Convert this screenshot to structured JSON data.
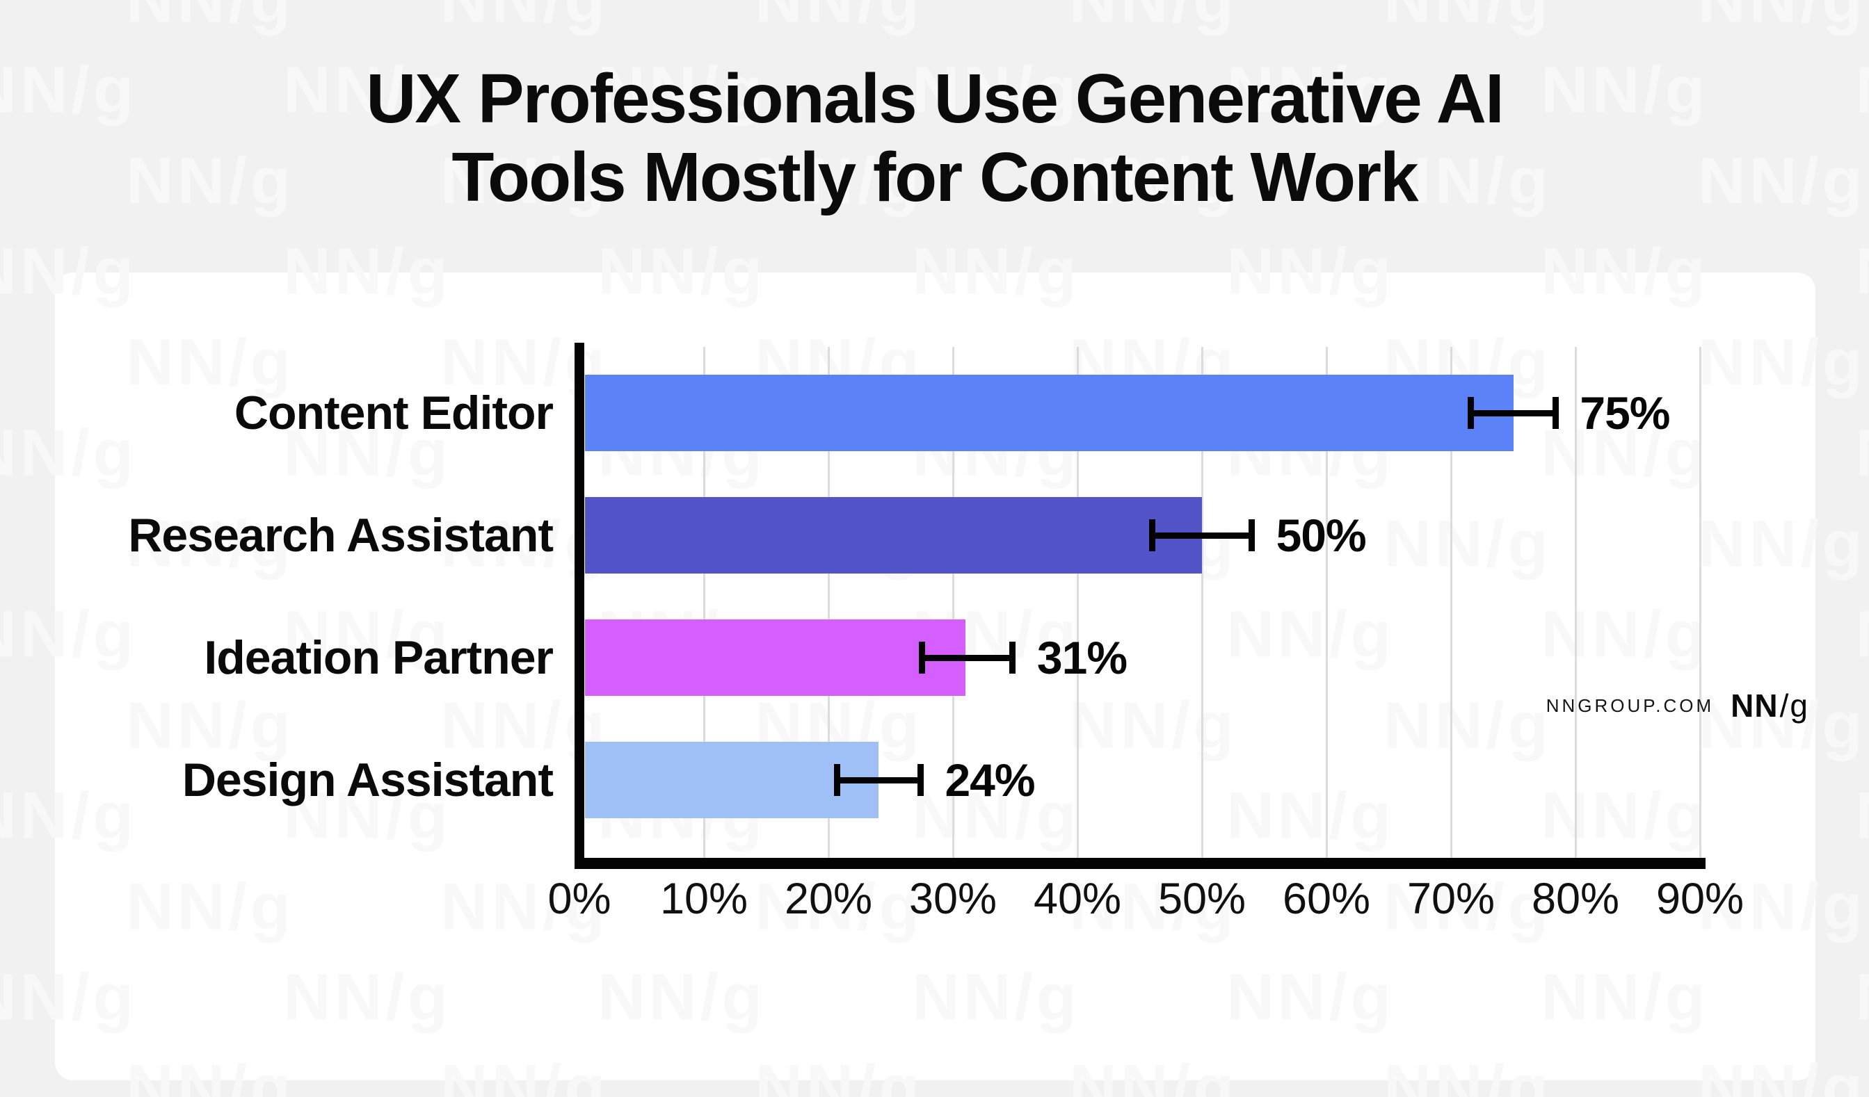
{
  "title": {
    "line1": "UX Professionals Use Generative AI",
    "line2": "Tools Mostly for Content Work"
  },
  "watermark_text": "NN/g",
  "footer": {
    "site": "NNGROUP.COM",
    "logo_nn": "NN",
    "logo_slash": "/",
    "logo_g": "g"
  },
  "chart_data": {
    "type": "bar",
    "orientation": "horizontal",
    "title": "UX Professionals Use Generative AI Tools Mostly for Content Work",
    "categories": [
      "Content Editor",
      "Research Assistant",
      "Ideation Partner",
      "Design Assistant"
    ],
    "values": [
      75,
      50,
      31,
      24
    ],
    "value_labels": [
      "75%",
      "50%",
      "31%",
      "24%"
    ],
    "error_low": [
      71.6,
      46,
      27.5,
      20.7
    ],
    "error_high": [
      78.4,
      54,
      34.8,
      27.4
    ],
    "bar_colors": [
      "#5c82f8",
      "#5254c8",
      "#d45ffe",
      "#9ec0f6"
    ],
    "x_ticks": [
      "0%",
      "10%",
      "20%",
      "30%",
      "40%",
      "50%",
      "60%",
      "70%",
      "80%",
      "90%"
    ],
    "xlim": [
      0,
      90
    ],
    "grid": true,
    "gridline_color": "#dcdcdc",
    "axis_color": "#030303",
    "background_color": "#f1f1f2",
    "card_color": "#ffffff",
    "legend": null
  }
}
